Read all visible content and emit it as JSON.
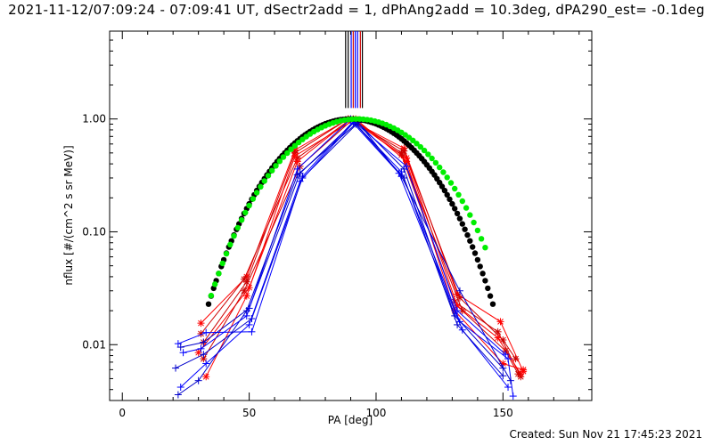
{
  "figure": {
    "title": "2021-11-12/07:09:24 - 07:09:41 UT, dSectr2add = 1, dPhAng2add = 10.3deg, dPA290_est= -0.1deg",
    "created_label": "Created: Sun Nov 21 17:45:23 2021"
  },
  "chart_data": {
    "type": "scatter",
    "xlabel": "PA [deg]",
    "ylabel": "nflux [#/(cm^2 s sr MeV)]",
    "xlim": [
      -5,
      185
    ],
    "ylim": [
      0.0032,
      6.0
    ],
    "yscale": "log",
    "x_ticks": [
      0,
      50,
      100,
      150
    ],
    "x_tick_labels": [
      "0",
      "50",
      "100",
      "150"
    ],
    "y_ticks": [
      1.0,
      0.1,
      0.01
    ],
    "y_tick_labels": [
      "1.00",
      "0.10",
      "0.01"
    ],
    "grid": false,
    "vertical_markers": [
      {
        "x": 88.0,
        "color": "#000000"
      },
      {
        "x": 89.0,
        "color": "#000000"
      },
      {
        "x": 90.2,
        "color": "#0000ff"
      },
      {
        "x": 91.0,
        "color": "#cc0000"
      },
      {
        "x": 91.8,
        "color": "#0000ff"
      },
      {
        "x": 92.7,
        "color": "#0000ff"
      },
      {
        "x": 93.8,
        "color": "#cc0000"
      },
      {
        "x": 94.6,
        "color": "#000000"
      }
    ],
    "series": [
      {
        "color": "#ff0000",
        "marker": "asterisk",
        "points": [
          [
            31,
            0.0155
          ],
          [
            49,
            0.04
          ],
          [
            68,
            0.53
          ],
          [
            89,
            1.0
          ],
          [
            111,
            0.55
          ],
          [
            132,
            0.028
          ],
          [
            149,
            0.016
          ],
          [
            158,
            0.0058
          ]
        ]
      },
      {
        "color": "#cc0000",
        "marker": "asterisk",
        "points": [
          [
            31,
            0.0125
          ],
          [
            48,
            0.038
          ],
          [
            69,
            0.45
          ],
          [
            90,
            1.0
          ],
          [
            110,
            0.48
          ],
          [
            131,
            0.024
          ],
          [
            148,
            0.013
          ],
          [
            157,
            0.0052
          ]
        ]
      },
      {
        "color": "#cc0000",
        "marker": "asterisk",
        "points": [
          [
            32,
            0.0105
          ],
          [
            49,
            0.036
          ],
          [
            68,
            0.5
          ],
          [
            89,
            1.0
          ],
          [
            111,
            0.52
          ],
          [
            133,
            0.026
          ],
          [
            150,
            0.011
          ],
          [
            155,
            0.0075
          ]
        ]
      },
      {
        "color": "#ff0000",
        "marker": "asterisk",
        "points": [
          [
            30,
            0.0085
          ],
          [
            50,
            0.032
          ],
          [
            69,
            0.42
          ],
          [
            90,
            1.0
          ],
          [
            112,
            0.45
          ],
          [
            132,
            0.022
          ],
          [
            148,
            0.0115
          ],
          [
            157,
            0.0055
          ]
        ]
      },
      {
        "color": "#cc0000",
        "marker": "asterisk",
        "points": [
          [
            32,
            0.0075
          ],
          [
            48,
            0.03
          ],
          [
            70,
            0.38
          ],
          [
            91,
            1.0
          ],
          [
            110,
            0.5
          ],
          [
            134,
            0.02
          ],
          [
            151,
            0.0088
          ],
          [
            156,
            0.0055
          ]
        ]
      },
      {
        "color": "#ff0000",
        "marker": "asterisk",
        "points": [
          [
            33,
            0.0052
          ],
          [
            49,
            0.027
          ],
          [
            68,
            0.47
          ],
          [
            92,
            1.0
          ],
          [
            112,
            0.42
          ],
          [
            131,
            0.02
          ],
          [
            150,
            0.0068
          ],
          [
            158,
            0.006
          ]
        ]
      },
      {
        "color": "#0000ff",
        "marker": "plus",
        "points": [
          [
            22,
            0.0102
          ],
          [
            33,
            0.0128
          ],
          [
            51,
            0.013
          ],
          [
            71,
            0.31
          ],
          [
            91,
            0.95
          ],
          [
            110,
            0.34
          ],
          [
            133,
            0.016
          ],
          [
            152,
            0.0075
          ],
          [
            154,
            0.0035
          ]
        ]
      },
      {
        "color": "#0000cc",
        "marker": "plus",
        "points": [
          [
            23,
            0.0095
          ],
          [
            32,
            0.0105
          ],
          [
            50,
            0.021
          ],
          [
            70,
            0.33
          ],
          [
            92,
            0.97
          ],
          [
            111,
            0.36
          ],
          [
            131,
            0.018
          ],
          [
            150,
            0.0062
          ]
        ]
      },
      {
        "color": "#0000ff",
        "marker": "plus",
        "points": [
          [
            24,
            0.0085
          ],
          [
            31,
            0.0092
          ],
          [
            49,
            0.018
          ],
          [
            69,
            0.36
          ],
          [
            90,
            1.0
          ],
          [
            112,
            0.38
          ],
          [
            132,
            0.02
          ],
          [
            151,
            0.0082
          ]
        ]
      },
      {
        "color": "#0000cc",
        "marker": "plus",
        "points": [
          [
            21,
            0.0062
          ],
          [
            32,
            0.0082
          ],
          [
            51,
            0.017
          ],
          [
            71,
            0.3
          ],
          [
            93,
            0.93
          ],
          [
            110,
            0.31
          ],
          [
            133,
            0.03
          ],
          [
            153,
            0.0048
          ]
        ]
      },
      {
        "color": "#0000ff",
        "marker": "plus",
        "points": [
          [
            23,
            0.0042
          ],
          [
            33,
            0.0068
          ],
          [
            50,
            0.015
          ],
          [
            70,
            0.28
          ],
          [
            91,
            0.92
          ],
          [
            109,
            0.33
          ],
          [
            134,
            0.0135
          ],
          [
            152,
            0.0042
          ]
        ]
      },
      {
        "color": "#0000cc",
        "marker": "plus",
        "points": [
          [
            22,
            0.0036
          ],
          [
            30,
            0.0048
          ],
          [
            49,
            0.02
          ],
          [
            69,
            0.32
          ],
          [
            92,
            0.9
          ],
          [
            111,
            0.3
          ],
          [
            132,
            0.015
          ],
          [
            150,
            0.0053
          ]
        ]
      }
    ],
    "fits": [
      {
        "color": "#000000",
        "marker": "dot",
        "center": 90.0,
        "exponent": 6.5,
        "x_range": [
          34,
          146
        ],
        "step": 1.0
      },
      {
        "color": "#00ee00",
        "marker": "dot",
        "center": 92.5,
        "exponent": 5.8,
        "x_range": [
          35,
          143
        ],
        "step": 1.5
      }
    ]
  }
}
